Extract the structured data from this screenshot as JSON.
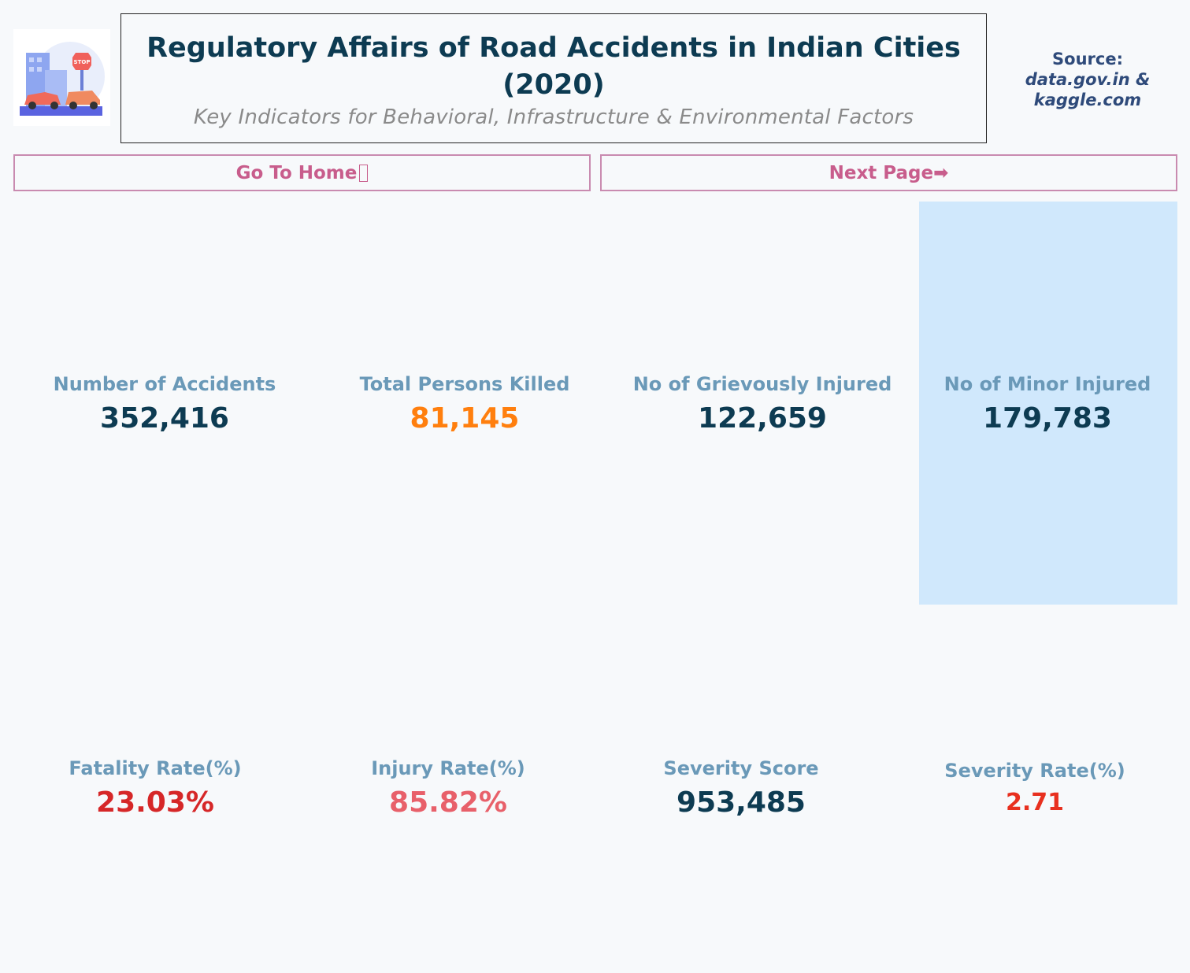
{
  "header": {
    "title": "Regulatory Affairs of Road Accidents in Indian Cities (2020)",
    "subtitle": "Key Indicators for Behavioral, Infrastructure & Environmental Factors",
    "source_label": "Source:",
    "source_value": "data.gov.in & kaggle.com"
  },
  "logo": {
    "icon": "road-accident-illustration-icon"
  },
  "nav": {
    "home_label": "Go To Home",
    "home_icon": "home-icon",
    "next_label": "Next Page➡"
  },
  "kpis_row1": [
    {
      "label": "Number of Accidents",
      "value": "352,416",
      "color": "#0d3b52"
    },
    {
      "label": "Total Persons Killed",
      "value": "81,145",
      "color": "#ff7f0e"
    },
    {
      "label": "No of Grievously Injured",
      "value": "122,659",
      "color": "#0d3b52"
    },
    {
      "label": "No of Minor Injured",
      "value": "179,783",
      "color": "#0d3b52"
    }
  ],
  "kpis_row2": [
    {
      "label": "Fatality Rate(%)",
      "value": "23.03%",
      "color": "#d62728"
    },
    {
      "label": "Injury Rate(%)",
      "value": "85.82%",
      "color": "#e8606a"
    },
    {
      "label": "Severity Score",
      "value": "953,485",
      "color": "#0d3b52"
    },
    {
      "label": "Severity Rate(%)",
      "value": "2.71",
      "color": "#e8301f"
    }
  ],
  "colors": {
    "highlight": "#d0e8fc",
    "nav_border": "#c98bb0",
    "nav_text": "#c85d8c"
  }
}
